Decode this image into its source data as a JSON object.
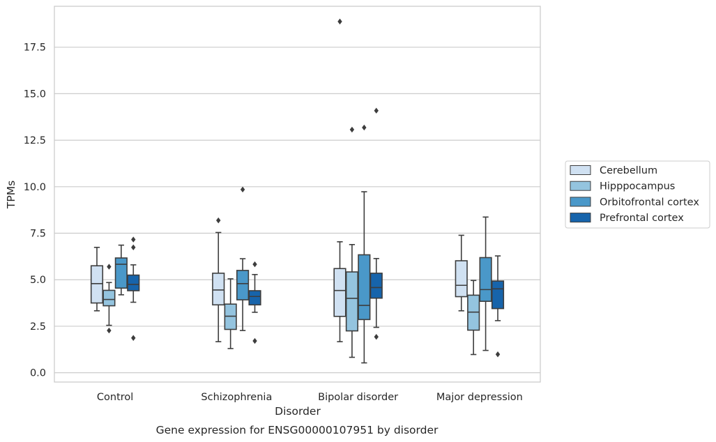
{
  "chart_data": {
    "type": "box",
    "title": "",
    "caption": "Gene expression for ENSG00000107951 by disorder",
    "xlabel": "Disorder",
    "ylabel": "TPMs",
    "ylim": [
      -0.5,
      19.7
    ],
    "yticks": [
      0.0,
      2.5,
      5.0,
      7.5,
      10.0,
      12.5,
      15.0,
      17.5
    ],
    "ytick_labels": [
      "0.0",
      "2.5",
      "5.0",
      "7.5",
      "10.0",
      "12.5",
      "15.0",
      "17.5"
    ],
    "grid": "horizontal",
    "legend_position": "right",
    "categories": [
      "Control",
      "Schizophrenia",
      "Bipolar disorder",
      "Major depression"
    ],
    "series": [
      {
        "name": "Cerebellum",
        "color": "#d0e1f2",
        "boxes": [
          {
            "whislo": 3.33,
            "q1": 3.75,
            "med": 4.79,
            "q3": 5.75,
            "whishi": 6.74,
            "fliers": []
          },
          {
            "whislo": 1.67,
            "q1": 3.65,
            "med": 4.45,
            "q3": 5.35,
            "whishi": 7.54,
            "fliers": [
              8.19
            ]
          },
          {
            "whislo": 1.67,
            "q1": 3.03,
            "med": 4.42,
            "q3": 5.6,
            "whishi": 7.04,
            "fliers": [
              18.88
            ]
          },
          {
            "whislo": 3.33,
            "q1": 4.09,
            "med": 4.7,
            "q3": 6.02,
            "whishi": 7.39,
            "fliers": []
          }
        ]
      },
      {
        "name": "Hipppocampus",
        "color": "#94c4df",
        "boxes": [
          {
            "whislo": 2.55,
            "q1": 3.6,
            "med": 3.94,
            "q3": 4.43,
            "whishi": 4.85,
            "fliers": [
              5.7,
              2.27
            ]
          },
          {
            "whislo": 1.3,
            "q1": 2.33,
            "med": 3.04,
            "q3": 3.69,
            "whishi": 5.05,
            "fliers": []
          },
          {
            "whislo": 0.83,
            "q1": 2.25,
            "med": 4.0,
            "q3": 5.42,
            "whishi": 6.89,
            "fliers": [
              13.07
            ]
          },
          {
            "whislo": 0.98,
            "q1": 2.29,
            "med": 3.26,
            "q3": 4.17,
            "whishi": 4.96,
            "fliers": []
          }
        ]
      },
      {
        "name": "Orbitofrontal cortex",
        "color": "#4a98c9",
        "boxes": [
          {
            "whislo": 4.19,
            "q1": 4.55,
            "med": 5.83,
            "q3": 6.17,
            "whishi": 6.86,
            "fliers": []
          },
          {
            "whislo": 2.27,
            "q1": 3.92,
            "med": 4.79,
            "q3": 5.5,
            "whishi": 6.13,
            "fliers": [
              9.85
            ]
          },
          {
            "whislo": 0.53,
            "q1": 2.86,
            "med": 3.62,
            "q3": 6.34,
            "whishi": 9.73,
            "fliers": [
              13.18
            ]
          },
          {
            "whislo": 1.2,
            "q1": 3.84,
            "med": 4.47,
            "q3": 6.19,
            "whishi": 8.37,
            "fliers": []
          }
        ]
      },
      {
        "name": "Prefrontal cortex",
        "color": "#1764ab",
        "boxes": [
          {
            "whislo": 3.79,
            "q1": 4.41,
            "med": 4.75,
            "q3": 5.25,
            "whishi": 5.8,
            "fliers": [
              7.16,
              6.74,
              1.87
            ]
          },
          {
            "whislo": 3.25,
            "q1": 3.65,
            "med": 4.1,
            "q3": 4.41,
            "whishi": 5.28,
            "fliers": [
              5.83,
              1.71
            ]
          },
          {
            "whislo": 2.44,
            "q1": 4.01,
            "med": 4.58,
            "q3": 5.35,
            "whishi": 6.14,
            "fliers": [
              1.93,
              14.09
            ]
          },
          {
            "whislo": 2.8,
            "q1": 3.45,
            "med": 4.51,
            "q3": 4.93,
            "whishi": 6.28,
            "fliers": [
              0.99
            ]
          }
        ]
      }
    ]
  }
}
